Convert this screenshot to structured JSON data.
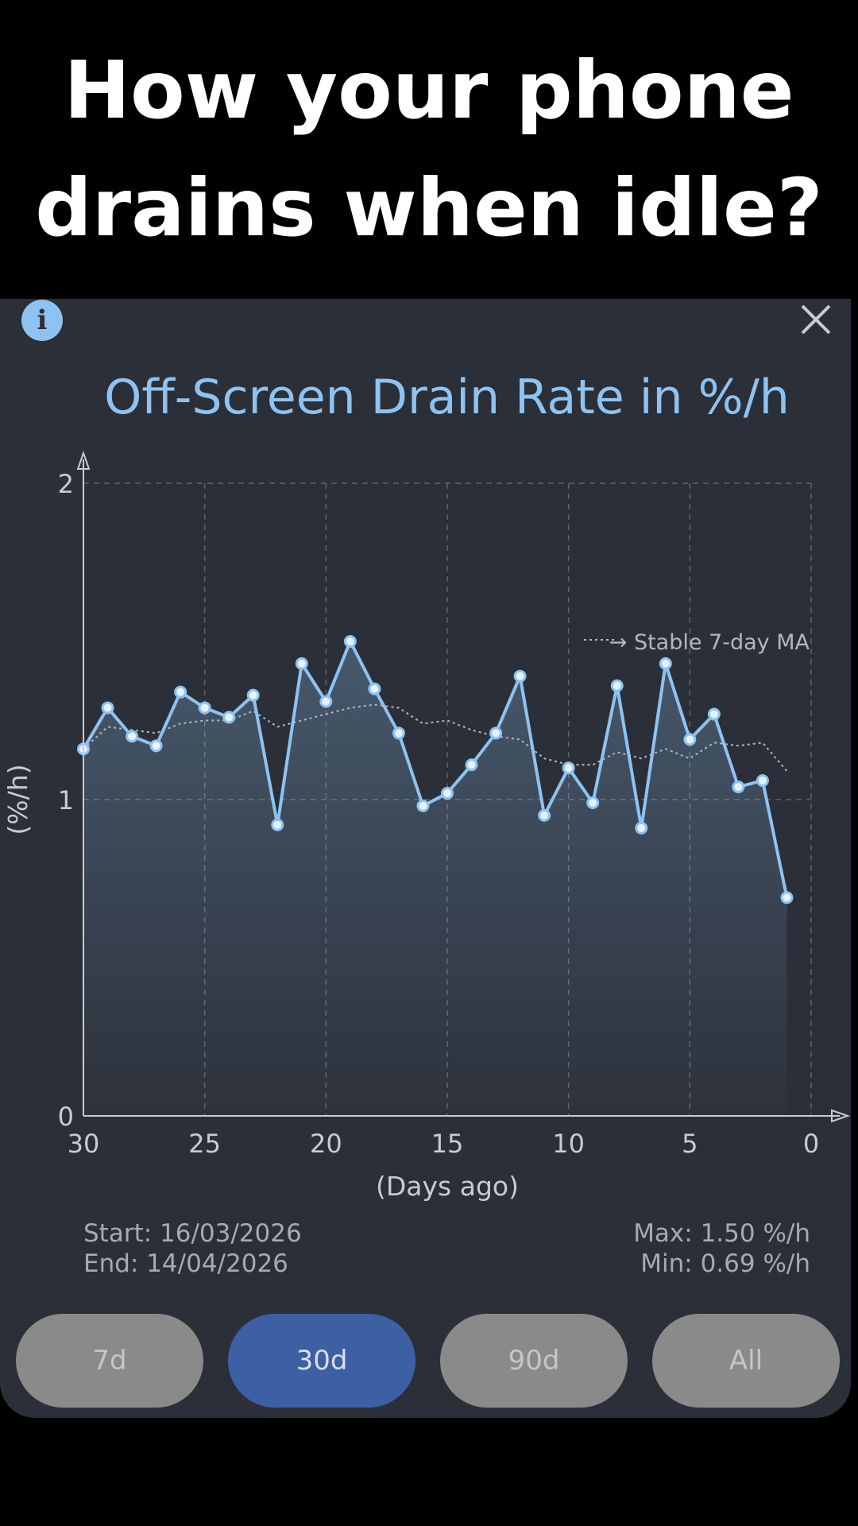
{
  "headline": {
    "line1": "How your phone",
    "line2": "drains when idle?"
  },
  "toolbar": {
    "info_icon": "i",
    "close_icon": "close-icon"
  },
  "chart_data": {
    "type": "line",
    "title": "Off-Screen Drain Rate in %/h",
    "xlabel": "(Days ago)",
    "ylabel": "(%/h)",
    "xlim": [
      30,
      0
    ],
    "ylim": [
      0,
      2
    ],
    "x_ticks": [
      "30",
      "25",
      "20",
      "15",
      "10",
      "5",
      "0"
    ],
    "y_ticks": [
      "0",
      "1",
      "2"
    ],
    "grid": true,
    "legend": {
      "label": "→ Stable 7-day MA",
      "placement": "top-right"
    },
    "series": [
      {
        "name": "",
        "x": [
          30,
          29,
          28,
          27,
          26,
          25,
          24,
          23,
          22,
          21,
          20,
          19,
          18,
          17,
          16,
          15,
          14,
          13,
          12,
          11,
          10,
          9,
          8,
          7,
          6,
          5,
          4,
          3,
          2,
          1
        ],
        "values": [
          1.16,
          1.29,
          1.2,
          1.17,
          1.34,
          1.29,
          1.26,
          1.33,
          0.92,
          1.43,
          1.31,
          1.5,
          1.35,
          1.21,
          0.98,
          1.02,
          1.11,
          1.21,
          1.39,
          0.95,
          1.1,
          0.99,
          1.36,
          0.91,
          1.43,
          1.19,
          1.27,
          1.04,
          1.06,
          0.69
        ]
      },
      {
        "name": "Stable 7-day MA",
        "x": [
          30,
          29,
          28,
          27,
          26,
          25,
          24,
          23,
          22,
          21,
          20,
          19,
          18,
          17,
          16,
          15,
          14,
          13,
          12,
          11,
          10,
          9,
          8,
          7,
          6,
          5,
          4,
          3,
          2,
          1
        ],
        "values": [
          1.16,
          1.23,
          1.22,
          1.21,
          1.24,
          1.25,
          1.25,
          1.28,
          1.23,
          1.25,
          1.27,
          1.29,
          1.3,
          1.29,
          1.24,
          1.25,
          1.22,
          1.2,
          1.19,
          1.13,
          1.11,
          1.11,
          1.15,
          1.13,
          1.16,
          1.13,
          1.18,
          1.17,
          1.18,
          1.09
        ],
        "style": "dotted"
      }
    ],
    "colors": {
      "line": "#8ec3f1",
      "ma": "#b4b7bd",
      "grid": "#5d626c",
      "axis": "#c8cbd0"
    }
  },
  "stats": {
    "start": "Start: 16/03/2026",
    "end": "End:  14/04/2026",
    "max": "Max: 1.50 %/h",
    "min": "Min: 0.69 %/h"
  },
  "ranges": [
    {
      "label": "7d",
      "active": false
    },
    {
      "label": "30d",
      "active": true
    },
    {
      "label": "90d",
      "active": false
    },
    {
      "label": "All",
      "active": false
    }
  ]
}
